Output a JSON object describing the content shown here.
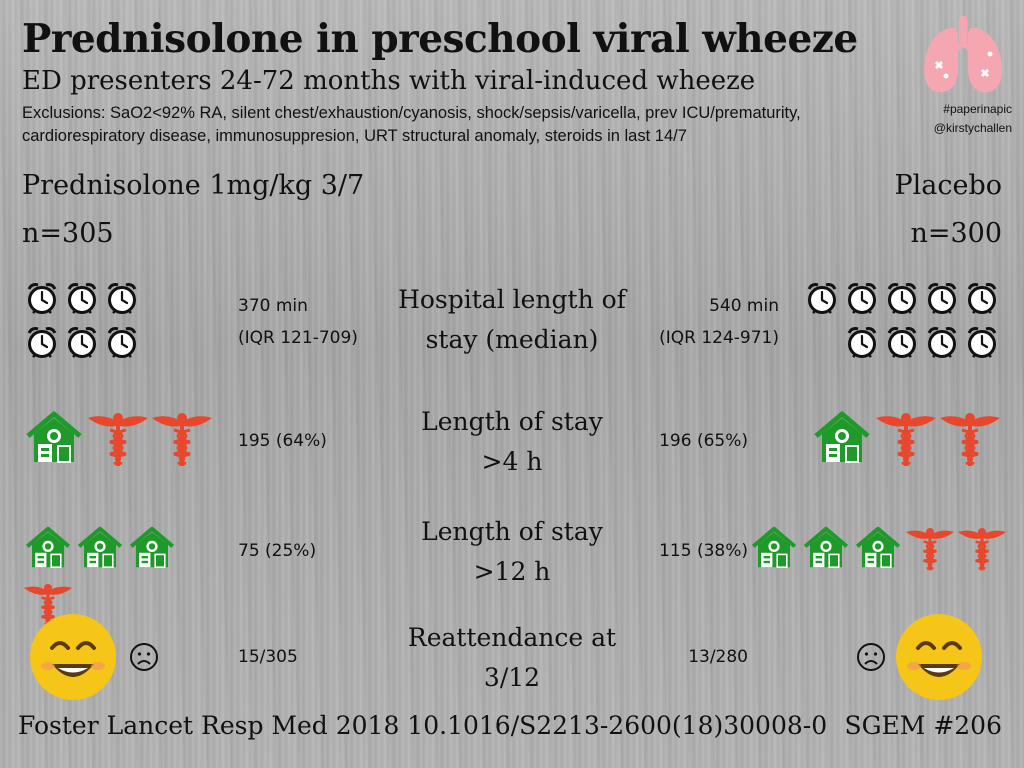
{
  "header": {
    "title": "Prednisolone in preschool viral wheeze",
    "subtitle": "ED presenters 24-72 months with viral-induced wheeze",
    "exclusions_line1": "Exclusions: SaO2<92% RA, silent chest/exhaustion/cyanosis, shock/sepsis/varicella, prev ICU/prematurity,",
    "exclusions_line2": "cardiorespiratory disease, immunosuppresion, URT structural anomaly, steroids in last 14/7"
  },
  "branding": {
    "hashtag": "#paperinapic",
    "handle": "@kirstychallen",
    "logo_icon": "lungs-icon",
    "logo_color": "#f4a7b0"
  },
  "arms": {
    "left": {
      "name": "Prednisolone 1mg/kg 3/7",
      "n": "n=305"
    },
    "right": {
      "name": "Placebo",
      "n": "n=300"
    }
  },
  "outcomes": [
    {
      "label_line1": "Hospital length of",
      "label_line2": "stay (median)",
      "left_value_line1": "370 min",
      "left_value_line2": "(IQR 121-709)",
      "right_value_line1": "540 min",
      "right_value_line2": "(IQR 124-971)",
      "left_icon": "alarm-clock-icon",
      "left_icon_count": 6,
      "right_icon_count": 9
    },
    {
      "label_line1": "Length of stay",
      "label_line2": ">4 h",
      "left_value": "195 (64%)",
      "right_value": "196 (65%)",
      "left_home": 1,
      "left_caduceus": 2,
      "right_home": 1,
      "right_caduceus": 2
    },
    {
      "label_line1": "Length of stay",
      "label_line2": ">12 h",
      "left_value": "75 (25%)",
      "right_value": "115 (38%)",
      "left_home": 3,
      "left_caduceus": 1,
      "right_home": 3,
      "right_caduceus": 2
    },
    {
      "label_line1": "Reattendance at",
      "label_line2": "3/12",
      "left_value": "15/305",
      "right_value": "13/280",
      "left_icons": [
        "smiley-icon",
        "frown-icon"
      ],
      "right_icons": [
        "frown-icon",
        "smiley-icon"
      ]
    }
  ],
  "colors": {
    "home_green": "#1f9a2a",
    "caduceus_red": "#e8472c",
    "smiley_yellow": "#f5c518"
  },
  "footer": {
    "citation": "Foster Lancet Resp Med 2018 10.1016/S2213-2600(18)30008-0",
    "sgem": "SGEM #206"
  }
}
